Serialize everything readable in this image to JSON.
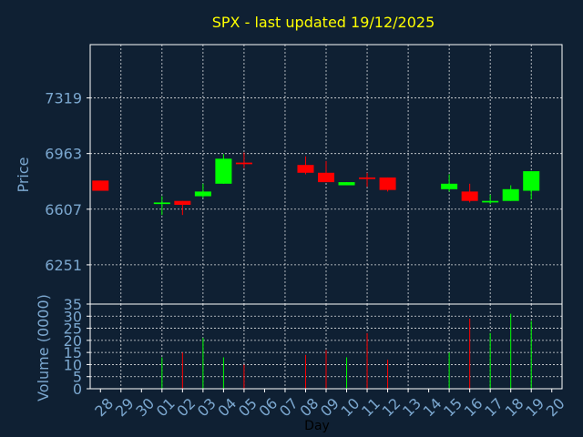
{
  "chart_data": {
    "type": "candlestick",
    "title": "SPX - last updated 19/12/2025",
    "xlabel": "Day",
    "price_panel": {
      "ylabel": "Price",
      "yticks": [
        6251,
        6607,
        6963,
        7319
      ],
      "ylim": [
        6000,
        7660
      ]
    },
    "volume_panel": {
      "ylabel": "Volume (0000)",
      "yticks": [
        0,
        5,
        10,
        15,
        20,
        25,
        30,
        35
      ],
      "ylim": [
        0,
        35
      ]
    },
    "days": [
      "28",
      "29",
      "30",
      "01",
      "02",
      "03",
      "04",
      "05",
      "06",
      "07",
      "08",
      "09",
      "10",
      "11",
      "12",
      "13",
      "14",
      "15",
      "16",
      "17",
      "18",
      "19",
      "20"
    ],
    "candles": [
      {
        "day": "28",
        "open": 6790,
        "close": 6725,
        "high": 6790,
        "low": 6725,
        "volume": 0
      },
      {
        "day": "01",
        "open": 6640,
        "close": 6650,
        "high": 6690,
        "low": 6570,
        "volume": 13
      },
      {
        "day": "02",
        "open": 6660,
        "close": 6635,
        "high": 6660,
        "low": 6570,
        "volume": 15
      },
      {
        "day": "03",
        "open": 6690,
        "close": 6720,
        "high": 6770,
        "low": 6680,
        "volume": 21
      },
      {
        "day": "04",
        "open": 6770,
        "close": 6930,
        "high": 6960,
        "low": 6770,
        "volume": 13
      },
      {
        "day": "05",
        "open": 6905,
        "close": 6895,
        "high": 6970,
        "low": 6870,
        "volume": 10
      },
      {
        "day": "08",
        "open": 6890,
        "close": 6840,
        "high": 6945,
        "low": 6830,
        "volume": 14
      },
      {
        "day": "09",
        "open": 6840,
        "close": 6780,
        "high": 6915,
        "low": 6780,
        "volume": 16
      },
      {
        "day": "10",
        "open": 6760,
        "close": 6780,
        "high": 6780,
        "low": 6760,
        "volume": 13
      },
      {
        "day": "11",
        "open": 6810,
        "close": 6800,
        "high": 6840,
        "low": 6750,
        "volume": 23
      },
      {
        "day": "12",
        "open": 6810,
        "close": 6730,
        "high": 6810,
        "low": 6720,
        "volume": 12
      },
      {
        "day": "15",
        "open": 6735,
        "close": 6770,
        "high": 6830,
        "low": 6720,
        "volume": 15
      },
      {
        "day": "16",
        "open": 6720,
        "close": 6660,
        "high": 6770,
        "low": 6650,
        "volume": 29
      },
      {
        "day": "17",
        "open": 6650,
        "close": 6660,
        "high": 6700,
        "low": 6640,
        "volume": 23
      },
      {
        "day": "18",
        "open": 6660,
        "close": 6735,
        "high": 6760,
        "low": 6660,
        "volume": 31
      },
      {
        "day": "19",
        "open": 6725,
        "close": 6850,
        "high": 6850,
        "low": 6670,
        "volume": 28
      }
    ],
    "colors": {
      "up": "#00ff00",
      "down": "#ff0000",
      "background": "#0f2033",
      "text": "#7ba7cf",
      "title": "#ffff00"
    },
    "grid": true
  }
}
